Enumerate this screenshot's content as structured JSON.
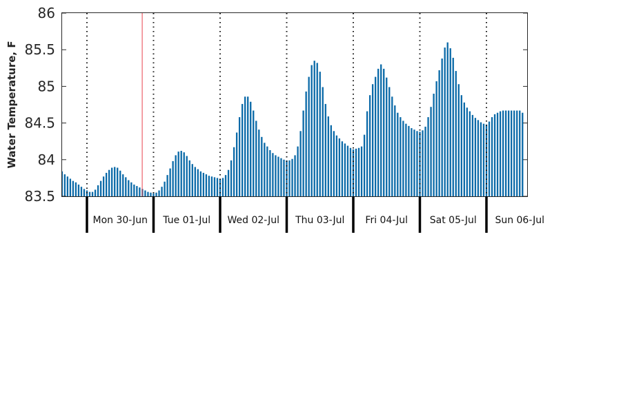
{
  "chart_data": {
    "type": "bar",
    "ylabel": "Water Temperature, F",
    "xlabel": "",
    "title": "",
    "ylim": [
      83.5,
      86
    ],
    "yticks": [
      83.5,
      84,
      84.5,
      85,
      85.5,
      86
    ],
    "grid": false,
    "day_labels": [
      "Mon 30-Jun",
      "Tue 01-Jul",
      "Wed 02-Jul",
      "Thu 03-Jul",
      "Fri 04-Jul",
      "Sat 05-Jul",
      "Sun 06-Jul"
    ],
    "bar_color": "#0b6aa8",
    "marker_color": "#e8424a",
    "current_time_marker_day": 0.83,
    "series": [
      {
        "values": [
          83.84,
          83.8,
          83.77,
          83.74,
          83.71,
          83.69,
          83.66,
          83.63,
          83.6,
          83.58,
          83.56,
          83.56,
          83.59,
          83.65,
          83.71,
          83.77,
          83.82,
          83.86,
          83.89,
          83.9,
          83.89,
          83.85,
          83.8,
          83.76,
          83.72,
          83.69,
          83.66,
          83.64,
          83.62,
          83.6,
          83.58,
          83.56,
          83.55,
          83.54,
          83.55,
          83.58,
          83.63,
          83.7,
          83.79,
          83.88,
          83.98,
          84.06,
          84.11,
          84.12,
          84.1,
          84.05,
          83.99,
          83.94,
          83.9,
          83.87,
          83.84,
          83.82,
          83.8,
          83.78,
          83.77,
          83.76,
          83.75,
          83.74,
          83.75,
          83.79,
          83.86,
          83.99,
          84.17,
          84.37,
          84.58,
          84.76,
          84.86,
          84.86,
          84.79,
          84.67,
          84.53,
          84.41,
          84.31,
          84.23,
          84.18,
          84.13,
          84.09,
          84.06,
          84.04,
          84.02,
          84.0,
          83.99,
          83.99,
          84.01,
          84.06,
          84.18,
          84.39,
          84.67,
          84.93,
          85.13,
          85.29,
          85.35,
          85.32,
          85.2,
          84.99,
          84.76,
          84.59,
          84.47,
          84.39,
          84.33,
          84.29,
          84.25,
          84.22,
          84.19,
          84.16,
          84.14,
          84.15,
          84.16,
          84.18,
          84.34,
          84.66,
          84.88,
          85.03,
          85.13,
          85.24,
          85.3,
          85.24,
          85.12,
          84.99,
          84.86,
          84.74,
          84.64,
          84.58,
          84.53,
          84.49,
          84.46,
          84.43,
          84.41,
          84.39,
          84.38,
          84.4,
          84.45,
          84.58,
          84.72,
          84.9,
          85.07,
          85.22,
          85.38,
          85.53,
          85.6,
          85.52,
          85.39,
          85.21,
          85.03,
          84.88,
          84.78,
          84.71,
          84.66,
          84.61,
          84.57,
          84.54,
          84.51,
          84.49,
          84.48,
          84.52,
          84.58,
          84.62,
          84.64,
          84.66,
          84.67,
          84.67,
          84.67,
          84.67,
          84.67,
          84.67,
          84.67,
          84.64
        ]
      }
    ]
  }
}
